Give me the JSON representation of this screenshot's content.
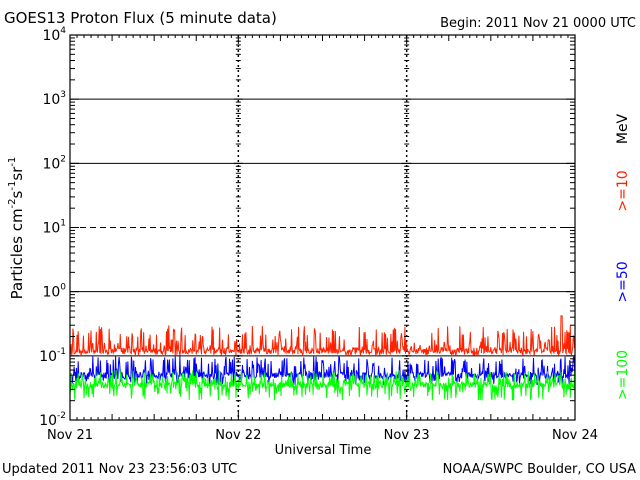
{
  "title": "GOES13 Proton Flux (5 minute data)",
  "begin_label": "Begin: 2011 Nov 21 0000 UTC",
  "updated_label": "Updated 2011 Nov 23 23:56:03 UTC",
  "credit_label": "NOAA/SWPC Boulder, CO USA",
  "chart_data": {
    "type": "line",
    "xlabel": "Universal Time",
    "ylabel_main": "Particles cm",
    "ylabel_parts": [
      {
        "text": "Particles cm",
        "sup": false
      },
      {
        "text": "-2",
        "sup": true
      },
      {
        "text": "s",
        "sup": false
      },
      {
        "text": "-1",
        "sup": true
      },
      {
        "text": "sr",
        "sup": false
      },
      {
        "text": "-1",
        "sup": true
      }
    ],
    "y_scale": "log",
    "ylim": [
      0.01,
      10000
    ],
    "y_ticks": [
      {
        "value": 0.01,
        "base": "10",
        "exp": "-2"
      },
      {
        "value": 0.1,
        "base": "10",
        "exp": "-1"
      },
      {
        "value": 1,
        "base": "10",
        "exp": "0"
      },
      {
        "value": 10,
        "base": "10",
        "exp": "1"
      },
      {
        "value": 100,
        "base": "10",
        "exp": "2"
      },
      {
        "value": 1000,
        "base": "10",
        "exp": "3"
      },
      {
        "value": 10000,
        "base": "10",
        "exp": "4"
      }
    ],
    "x_ticks": [
      "Nov 21",
      "Nov 22",
      "Nov 23",
      "Nov 24"
    ],
    "xlim_days": [
      0,
      3
    ],
    "reference_lines": [
      {
        "value": 1000,
        "style": "solid"
      },
      {
        "value": 100,
        "style": "solid"
      },
      {
        "value": 10,
        "style": "dashed"
      },
      {
        "value": 1,
        "style": "solid"
      },
      {
        "value": 0.1,
        "style": "solid"
      }
    ],
    "legend_unit": "MeV",
    "series": [
      {
        "name": ">=10",
        "color": "#ff2200",
        "baseline": 0.12,
        "range": [
          0.1,
          0.3
        ],
        "spike": {
          "day": 2.92,
          "value": 0.42
        }
      },
      {
        "name": ">=50",
        "color": "#0000ff",
        "baseline": 0.05,
        "range": [
          0.035,
          0.1
        ]
      },
      {
        "name": ">=100",
        "color": "#00ff00",
        "baseline": 0.035,
        "range": [
          0.02,
          0.06
        ]
      }
    ]
  }
}
